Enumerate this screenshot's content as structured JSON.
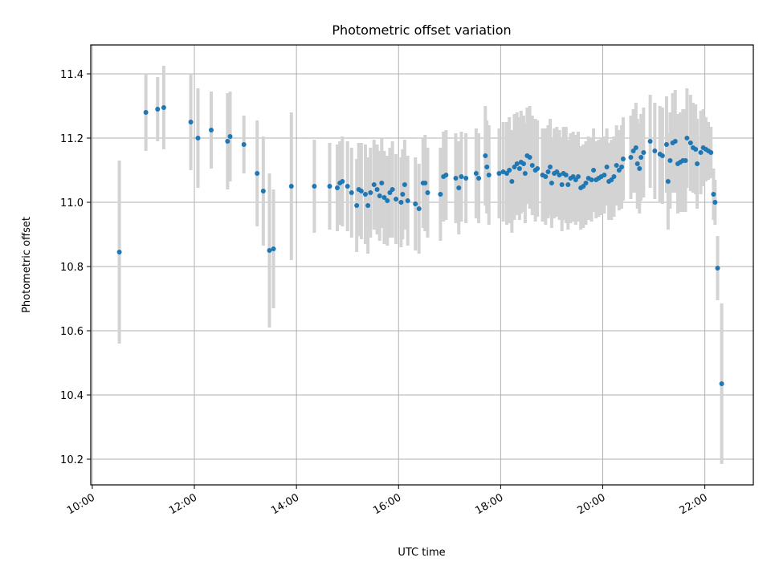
{
  "chart_data": {
    "type": "scatter",
    "title": "Photometric offset variation",
    "xlabel": "UTC time",
    "ylabel": "Photometric offset",
    "x_unit": "hours UTC",
    "xlim": [
      9.97,
      22.95
    ],
    "ylim": [
      10.12,
      11.49
    ],
    "grid": true,
    "x_tick_values": [
      10,
      12,
      14,
      16,
      18,
      20,
      22
    ],
    "x_tick_labels": [
      "10:00",
      "12:00",
      "14:00",
      "16:00",
      "18:00",
      "20:00",
      "22:00"
    ],
    "y_tick_values": [
      10.2,
      10.4,
      10.6,
      10.8,
      11.0,
      11.2,
      11.4
    ],
    "y_tick_labels": [
      "10.2",
      "10.4",
      "10.6",
      "10.8",
      "11.0",
      "11.2",
      "11.4"
    ],
    "marker_color": "#1f77b4",
    "errorbar_color": "#d3d3d3",
    "series": [
      {
        "points": [
          [
            10.53,
            10.845,
            0.285
          ],
          [
            11.05,
            11.28,
            0.12
          ],
          [
            11.28,
            11.29,
            0.1
          ],
          [
            11.4,
            11.295,
            0.13
          ],
          [
            11.93,
            11.25,
            0.15
          ],
          [
            12.07,
            11.2,
            0.155
          ],
          [
            12.33,
            11.225,
            0.12
          ],
          [
            12.65,
            11.19,
            0.15
          ],
          [
            12.7,
            11.205,
            0.14
          ],
          [
            12.97,
            11.18,
            0.09
          ],
          [
            13.23,
            11.09,
            0.165
          ],
          [
            13.35,
            11.035,
            0.17
          ],
          [
            13.47,
            10.85,
            0.24
          ],
          [
            13.55,
            10.855,
            0.185
          ],
          [
            13.9,
            11.05,
            0.23
          ],
          [
            14.35,
            11.05,
            0.145
          ],
          [
            14.65,
            11.05,
            0.135
          ],
          [
            14.8,
            11.045,
            0.135
          ],
          [
            14.85,
            11.06,
            0.13
          ],
          [
            14.9,
            11.065,
            0.14
          ],
          [
            15.0,
            11.05,
            0.14
          ],
          [
            15.08,
            11.03,
            0.14
          ],
          [
            15.18,
            10.99,
            0.145
          ],
          [
            15.22,
            11.04,
            0.145
          ],
          [
            15.27,
            11.035,
            0.15
          ],
          [
            15.35,
            11.025,
            0.155
          ],
          [
            15.4,
            10.99,
            0.15
          ],
          [
            15.45,
            11.03,
            0.14
          ],
          [
            15.52,
            11.055,
            0.14
          ],
          [
            15.58,
            11.04,
            0.14
          ],
          [
            15.63,
            11.02,
            0.14
          ],
          [
            15.67,
            11.06,
            0.14
          ],
          [
            15.72,
            11.015,
            0.145
          ],
          [
            15.78,
            11.005,
            0.14
          ],
          [
            15.83,
            11.03,
            0.14
          ],
          [
            15.88,
            11.04,
            0.15
          ],
          [
            15.95,
            11.01,
            0.14
          ],
          [
            16.05,
            11.0,
            0.14
          ],
          [
            16.08,
            11.025,
            0.14
          ],
          [
            16.12,
            11.055,
            0.14
          ],
          [
            16.18,
            11.005,
            0.14
          ],
          [
            16.33,
            10.995,
            0.145
          ],
          [
            16.4,
            10.98,
            0.14
          ],
          [
            16.48,
            11.06,
            0.14
          ],
          [
            16.52,
            11.06,
            0.15
          ],
          [
            16.57,
            11.03,
            0.14
          ],
          [
            16.82,
            11.025,
            0.145
          ],
          [
            16.88,
            11.08,
            0.14
          ],
          [
            16.93,
            11.085,
            0.14
          ],
          [
            17.12,
            11.075,
            0.14
          ],
          [
            17.18,
            11.045,
            0.145
          ],
          [
            17.23,
            11.08,
            0.14
          ],
          [
            17.32,
            11.075,
            0.14
          ],
          [
            17.52,
            11.09,
            0.14
          ],
          [
            17.57,
            11.075,
            0.14
          ],
          [
            17.7,
            11.145,
            0.155
          ],
          [
            17.73,
            11.11,
            0.145
          ],
          [
            17.77,
            11.085,
            0.155
          ],
          [
            17.97,
            11.09,
            0.14
          ],
          [
            18.05,
            11.095,
            0.155
          ],
          [
            18.12,
            11.09,
            0.16
          ],
          [
            18.17,
            11.1,
            0.165
          ],
          [
            18.22,
            11.065,
            0.16
          ],
          [
            18.27,
            11.11,
            0.165
          ],
          [
            18.32,
            11.12,
            0.16
          ],
          [
            18.37,
            11.105,
            0.16
          ],
          [
            18.4,
            11.125,
            0.16
          ],
          [
            18.45,
            11.12,
            0.15
          ],
          [
            18.48,
            11.09,
            0.155
          ],
          [
            18.52,
            11.145,
            0.15
          ],
          [
            18.57,
            11.14,
            0.16
          ],
          [
            18.62,
            11.115,
            0.155
          ],
          [
            18.68,
            11.1,
            0.16
          ],
          [
            18.72,
            11.105,
            0.15
          ],
          [
            18.82,
            11.085,
            0.145
          ],
          [
            18.88,
            11.08,
            0.15
          ],
          [
            18.93,
            11.095,
            0.145
          ],
          [
            18.97,
            11.11,
            0.15
          ],
          [
            19.0,
            11.06,
            0.14
          ],
          [
            19.05,
            11.09,
            0.14
          ],
          [
            19.1,
            11.095,
            0.14
          ],
          [
            19.15,
            11.085,
            0.14
          ],
          [
            19.2,
            11.055,
            0.145
          ],
          [
            19.23,
            11.09,
            0.145
          ],
          [
            19.28,
            11.085,
            0.15
          ],
          [
            19.32,
            11.055,
            0.14
          ],
          [
            19.37,
            11.075,
            0.14
          ],
          [
            19.42,
            11.08,
            0.14
          ],
          [
            19.47,
            11.07,
            0.14
          ],
          [
            19.52,
            11.08,
            0.14
          ],
          [
            19.57,
            11.045,
            0.13
          ],
          [
            19.62,
            11.05,
            0.13
          ],
          [
            19.67,
            11.06,
            0.13
          ],
          [
            19.72,
            11.075,
            0.13
          ],
          [
            19.78,
            11.07,
            0.13
          ],
          [
            19.82,
            11.1,
            0.13
          ],
          [
            19.87,
            11.07,
            0.12
          ],
          [
            19.92,
            11.075,
            0.12
          ],
          [
            19.97,
            11.08,
            0.12
          ],
          [
            20.03,
            11.085,
            0.12
          ],
          [
            20.08,
            11.11,
            0.12
          ],
          [
            20.12,
            11.065,
            0.12
          ],
          [
            20.17,
            11.07,
            0.125
          ],
          [
            20.22,
            11.08,
            0.125
          ],
          [
            20.27,
            11.115,
            0.125
          ],
          [
            20.32,
            11.1,
            0.125
          ],
          [
            20.37,
            11.11,
            0.13
          ],
          [
            20.4,
            11.135,
            0.13
          ],
          [
            20.55,
            11.14,
            0.13
          ],
          [
            20.6,
            11.16,
            0.13
          ],
          [
            20.65,
            11.17,
            0.14
          ],
          [
            20.68,
            11.12,
            0.14
          ],
          [
            20.72,
            11.105,
            0.14
          ],
          [
            20.75,
            11.14,
            0.135
          ],
          [
            20.8,
            11.155,
            0.14
          ],
          [
            20.93,
            11.19,
            0.145
          ],
          [
            21.02,
            11.16,
            0.15
          ],
          [
            21.12,
            11.15,
            0.15
          ],
          [
            21.17,
            11.145,
            0.15
          ],
          [
            21.25,
            11.18,
            0.15
          ],
          [
            21.28,
            11.065,
            0.15
          ],
          [
            21.32,
            11.13,
            0.15
          ],
          [
            21.37,
            11.185,
            0.155
          ],
          [
            21.42,
            11.19,
            0.16
          ],
          [
            21.47,
            11.12,
            0.155
          ],
          [
            21.52,
            11.125,
            0.155
          ],
          [
            21.57,
            11.13,
            0.16
          ],
          [
            21.62,
            11.13,
            0.16
          ],
          [
            21.65,
            11.2,
            0.155
          ],
          [
            21.72,
            11.185,
            0.15
          ],
          [
            21.77,
            11.17,
            0.14
          ],
          [
            21.82,
            11.165,
            0.14
          ],
          [
            21.85,
            11.12,
            0.14
          ],
          [
            21.92,
            11.155,
            0.13
          ],
          [
            21.97,
            11.17,
            0.12
          ],
          [
            22.02,
            11.165,
            0.1
          ],
          [
            22.07,
            11.16,
            0.09
          ],
          [
            22.12,
            11.155,
            0.08
          ],
          [
            22.17,
            11.025,
            0.08
          ],
          [
            22.2,
            11.0,
            0.07
          ],
          [
            22.25,
            10.795,
            0.1
          ],
          [
            22.33,
            10.435,
            0.25
          ]
        ]
      }
    ]
  }
}
